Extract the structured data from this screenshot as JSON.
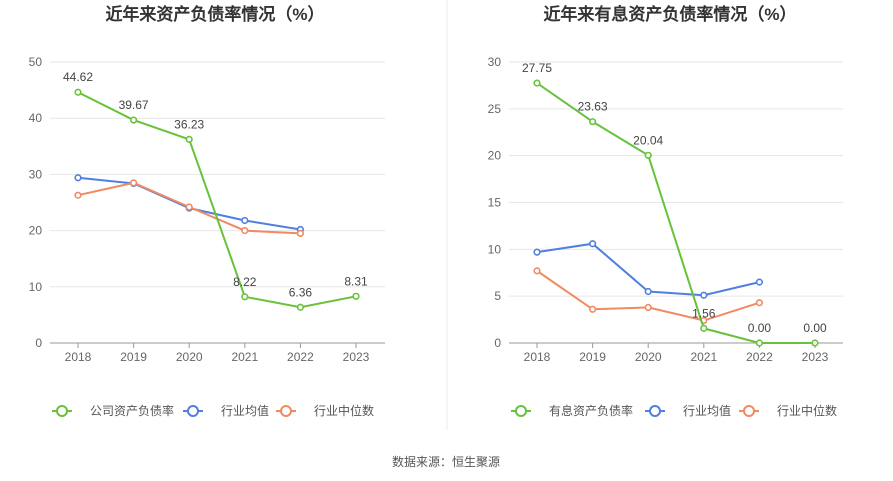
{
  "chart_data": [
    {
      "type": "line",
      "title": "近年来资产负债率情况（%）",
      "categories": [
        "2018",
        "2019",
        "2020",
        "2021",
        "2022",
        "2023"
      ],
      "ylim": [
        0,
        50
      ],
      "yticks": [
        "0",
        "10",
        "20",
        "30",
        "40",
        "50"
      ],
      "grid": true,
      "legend_position": "bottom",
      "series": [
        {
          "name": "公司资产负债率",
          "color": "#67c23a",
          "values": [
            44.62,
            39.67,
            36.23,
            8.22,
            6.36,
            8.31
          ],
          "labels": [
            "44.62",
            "39.67",
            "36.23",
            "8.22",
            "6.36",
            "8.31"
          ]
        },
        {
          "name": "行业均值",
          "color": "#4f7fe0",
          "values": [
            29.4,
            28.4,
            24.0,
            21.8,
            20.2,
            null
          ]
        },
        {
          "name": "行业中位数",
          "color": "#f08a60",
          "values": [
            26.3,
            28.5,
            24.2,
            20.0,
            19.5,
            null
          ]
        }
      ]
    },
    {
      "type": "line",
      "title": "近年来有息资产负债率情况（%）",
      "categories": [
        "2018",
        "2019",
        "2020",
        "2021",
        "2022",
        "2023"
      ],
      "ylim": [
        0,
        30
      ],
      "yticks": [
        "0",
        "5",
        "10",
        "15",
        "20",
        "25",
        "30"
      ],
      "grid": true,
      "legend_position": "bottom",
      "series": [
        {
          "name": "有息资产负债率",
          "color": "#67c23a",
          "values": [
            27.75,
            23.63,
            20.04,
            1.56,
            0.0,
            0.0
          ],
          "labels": [
            "27.75",
            "23.63",
            "20.04",
            "1.56",
            "0.00",
            "0.00"
          ]
        },
        {
          "name": "行业均值",
          "color": "#4f7fe0",
          "values": [
            9.7,
            10.6,
            5.5,
            5.1,
            6.5,
            null
          ]
        },
        {
          "name": "行业中位数",
          "color": "#f08a60",
          "values": [
            7.7,
            3.6,
            3.8,
            2.4,
            4.3,
            null
          ]
        }
      ]
    }
  ],
  "source": "数据来源：恒生聚源"
}
